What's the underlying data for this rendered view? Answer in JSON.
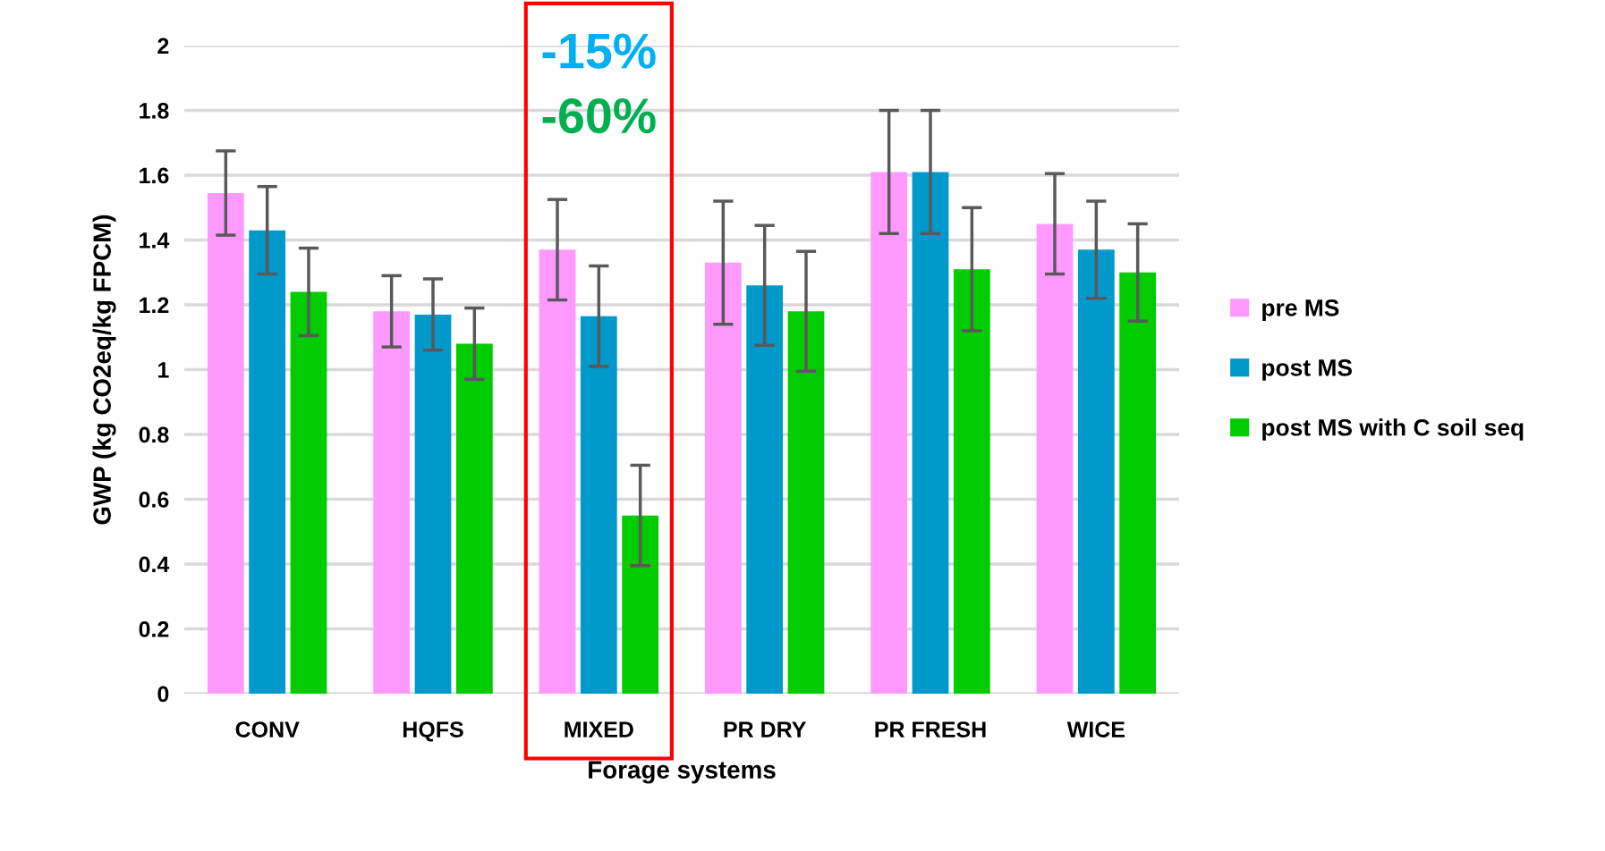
{
  "chart_data": {
    "type": "bar",
    "xlabel": "Forage systems",
    "ylabel": "GWP (kg CO2eq/kg FPCM)",
    "categories": [
      "CONV",
      "HQFS",
      "MIXED",
      "PR DRY",
      "PR FRESH",
      "WICE"
    ],
    "series": [
      {
        "name": "pre MS",
        "color": "#ff99ff",
        "values": [
          1.545,
          1.18,
          1.37,
          1.33,
          1.61,
          1.45
        ],
        "errors": [
          0.13,
          0.11,
          0.155,
          0.19,
          0.19,
          0.155
        ]
      },
      {
        "name": "post MS",
        "color": "#0099cc",
        "values": [
          1.43,
          1.17,
          1.165,
          1.26,
          1.61,
          1.37
        ],
        "errors": [
          0.135,
          0.11,
          0.155,
          0.185,
          0.19,
          0.15
        ]
      },
      {
        "name": "post MS with C soil seq",
        "color": "#00cc00",
        "values": [
          1.24,
          1.08,
          0.55,
          1.18,
          1.31,
          1.3
        ],
        "errors": [
          0.135,
          0.11,
          0.155,
          0.185,
          0.19,
          0.15
        ]
      }
    ],
    "ylim": [
      0,
      2
    ],
    "yticks": [
      0,
      0.2,
      0.4,
      0.6,
      0.8,
      1,
      1.2,
      1.4,
      1.6,
      1.8,
      2
    ],
    "grid": "y",
    "legend": "right",
    "annotations": [
      "-15%",
      "-60%"
    ]
  }
}
